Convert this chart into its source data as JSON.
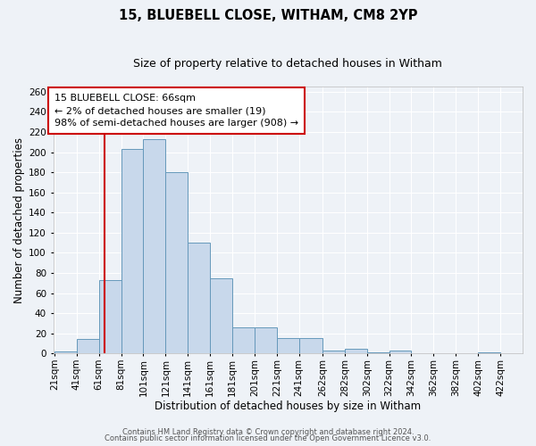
{
  "title_line1": "15, BLUEBELL CLOSE, WITHAM, CM8 2YP",
  "title_line2": "Size of property relative to detached houses in Witham",
  "xlabel": "Distribution of detached houses by size in Witham",
  "ylabel": "Number of detached properties",
  "bin_edges": [
    21,
    41,
    61,
    81,
    101,
    121,
    141,
    161,
    181,
    201,
    221,
    241,
    262,
    282,
    302,
    322,
    342,
    362,
    382,
    402,
    422
  ],
  "bar_heights": [
    2,
    14,
    73,
    203,
    213,
    180,
    110,
    75,
    26,
    26,
    15,
    15,
    3,
    5,
    1,
    3,
    0,
    0,
    0,
    1
  ],
  "bar_color": "#c8d8eb",
  "bar_edge_color": "#6699bb",
  "property_size": 66,
  "vline_color": "#cc0000",
  "ylim": [
    0,
    265
  ],
  "yticks": [
    0,
    20,
    40,
    60,
    80,
    100,
    120,
    140,
    160,
    180,
    200,
    220,
    240,
    260
  ],
  "annotation_text": "15 BLUEBELL CLOSE: 66sqm\n← 2% of detached houses are smaller (19)\n98% of semi-detached houses are larger (908) →",
  "footer_line1": "Contains HM Land Registry data © Crown copyright and database right 2024.",
  "footer_line2": "Contains public sector information licensed under the Open Government Licence v3.0.",
  "background_color": "#eef2f7",
  "grid_color": "#ffffff",
  "title_fontsize": 10.5,
  "subtitle_fontsize": 9,
  "axis_label_fontsize": 8.5,
  "tick_fontsize": 7.5,
  "annotation_fontsize": 8,
  "footer_fontsize": 6
}
